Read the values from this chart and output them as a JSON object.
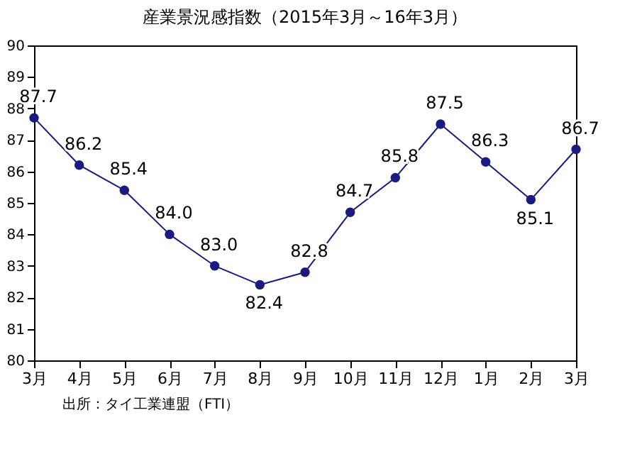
{
  "chart_data": {
    "type": "line",
    "title": "産業景況感指数（2015年3月～16年3月）",
    "categories": [
      "3月",
      "4月",
      "5月",
      "6月",
      "7月",
      "8月",
      "9月",
      "10月",
      "11月",
      "12月",
      "1月",
      "2月",
      "3月"
    ],
    "series": [
      {
        "color": "#1a1a80",
        "values": [
          87.7,
          86.2,
          85.4,
          84.0,
          83.0,
          82.4,
          82.8,
          84.7,
          85.8,
          87.5,
          86.3,
          85.1,
          86.7
        ],
        "value_labels": [
          "87.7",
          "86.2",
          "85.4",
          "84.0",
          "83.0",
          "82.4",
          "82.8",
          "84.7",
          "85.8",
          "87.5",
          "86.3",
          "85.1",
          "86.7"
        ]
      }
    ],
    "ylim": [
      80,
      90
    ],
    "yticks": [
      80,
      81,
      82,
      83,
      84,
      85,
      86,
      87,
      88,
      89,
      90
    ],
    "marker": "circle",
    "grid": false,
    "annotations": [
      "出所：タイ工業連盟（FTI）"
    ]
  }
}
